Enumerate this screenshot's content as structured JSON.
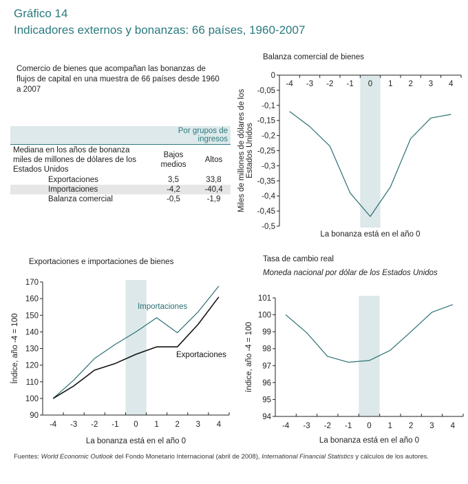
{
  "header": {
    "figure_number": "Gráfico 14",
    "title": "Indicadores externos y bonanzas: 66 países, 1960-2007"
  },
  "intro_text": "Comercio de bienes que acompañan las bonanzas de flujos de capital en una muestra de 66 países desde 1960 a 2007",
  "table": {
    "group_header": "Por grupos de ingresos",
    "row_header": "Mediana en los años de bonanza miles de millones de dólares de los Estados Unidos",
    "columns": [
      "Bajos medios",
      "Altos"
    ],
    "rows": [
      {
        "label": "Exportaciones",
        "values": [
          "3,5",
          "33,8"
        ]
      },
      {
        "label": "Importaciones",
        "values": [
          "-4,2",
          "-40,4"
        ]
      },
      {
        "label": "Balanza comercial",
        "values": [
          "-0,5",
          "-1,9"
        ]
      }
    ]
  },
  "colors": {
    "teal": "#2a6f73",
    "shade": "#dce8e9",
    "black": "#111111",
    "title": "#2a7a7e"
  },
  "chart_data": [
    {
      "type": "line",
      "title": "Balanza comercial de bienes",
      "xlabel": "La bonanza está en el año 0",
      "ylabel": "Miles de millones de dólares de los Estados Unidos",
      "x": [
        -4,
        -3,
        -2,
        -1,
        0,
        1,
        2,
        3,
        4
      ],
      "xticklabels": [
        "-4",
        "-3",
        "-2",
        "-1",
        "0",
        "1",
        "2",
        "3",
        "4"
      ],
      "yticks": [
        0,
        -0.05,
        -0.1,
        -0.15,
        -0.2,
        -0.25,
        -0.3,
        -0.35,
        -0.4,
        -0.45,
        -0.5
      ],
      "yticklabels": [
        "0",
        "-0,05",
        "-0,1",
        "-0,15",
        "-0,2",
        "-0,25",
        "-0,3",
        "-0,35",
        "-0,4",
        "-0,45",
        "-0,5"
      ],
      "ylim": [
        -0.5,
        0
      ],
      "highlight_x": 0,
      "series": [
        {
          "name": "Balanza comercial",
          "color": "#2a6f73",
          "values": [
            -0.12,
            -0.17,
            -0.235,
            -0.39,
            -0.468,
            -0.37,
            -0.21,
            -0.142,
            -0.13
          ]
        }
      ]
    },
    {
      "type": "line",
      "title": "Exportaciones e importaciones de bienes",
      "xlabel": "La bonanza está en el año 0",
      "ylabel": "Índice, año -4 = 100",
      "x": [
        -4,
        -3,
        -2,
        -1,
        0,
        1,
        2,
        3,
        4
      ],
      "xticklabels": [
        "-4",
        "-3",
        "-2",
        "-1",
        "0",
        "1",
        "2",
        "3",
        "4"
      ],
      "yticks": [
        90,
        100,
        110,
        120,
        130,
        140,
        150,
        160,
        170
      ],
      "yticklabels": [
        "90",
        "100",
        "110",
        "120",
        "130",
        "140",
        "150",
        "160",
        "170"
      ],
      "ylim": [
        90,
        170
      ],
      "highlight_x": 0,
      "series": [
        {
          "name": "Importaciones",
          "color": "#2a6f73",
          "values": [
            100,
            111,
            124,
            132.5,
            140,
            148.5,
            139.5,
            152,
            167.5
          ]
        },
        {
          "name": "Exportaciones",
          "color": "#111111",
          "values": [
            100,
            107.5,
            117,
            121,
            126.5,
            131,
            131,
            144.5,
            161
          ]
        }
      ]
    },
    {
      "type": "line",
      "title": "Tasa de cambio real",
      "subtitle": "Moneda nacional por dólar de los Estados Unidos",
      "xlabel": "La bonanza está en el año 0",
      "ylabel": "índice, año -4 = 100",
      "x": [
        -4,
        -3,
        -2,
        -1,
        0,
        1,
        2,
        3,
        4
      ],
      "xticklabels": [
        "-4",
        "-3",
        "-2",
        "-1",
        "0",
        "1",
        "2",
        "3",
        "4"
      ],
      "yticks": [
        94,
        95,
        96,
        97,
        98,
        99,
        100,
        101
      ],
      "yticklabels": [
        "94",
        "95",
        "96",
        "97",
        "98",
        "99",
        "100",
        "101"
      ],
      "ylim": [
        94,
        101
      ],
      "highlight_x": 0,
      "series": [
        {
          "name": "Tasa de cambio real",
          "color": "#2a6f73",
          "values": [
            100,
            98.95,
            97.55,
            97.2,
            97.3,
            97.9,
            99.0,
            100.15,
            100.6
          ]
        }
      ]
    }
  ],
  "footer": {
    "prefix": "Fuentes: ",
    "src1": "World Economic Outlook",
    "mid": " del Fondo Monetario Internacional (abril de 2008), ",
    "src2": "International Financial Statistics",
    "suffix": " y cálculos de los autores."
  }
}
